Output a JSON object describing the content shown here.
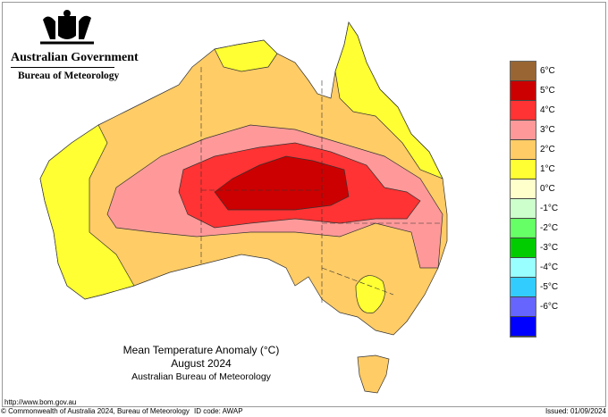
{
  "header": {
    "org": "Australian Government",
    "bureau": "Bureau of Meteorology"
  },
  "map_title": {
    "line1": "Mean Temperature Anomaly (°C)",
    "line2": "August 2024",
    "line3": "Australian Bureau of Meteorology"
  },
  "legend": {
    "colors": [
      "#996633",
      "#cc0000",
      "#ff3333",
      "#ff9999",
      "#ffcc66",
      "#ffff33",
      "#ffffcc",
      "#ccffcc",
      "#66ff66",
      "#00cc00",
      "#99ffff",
      "#33ccff",
      "#6666ff",
      "#0000ff"
    ],
    "labels": [
      "6°C",
      "5°C",
      "4°C",
      "3°C",
      "2°C",
      "1°C",
      "0°C",
      "-1°C",
      "-2°C",
      "-3°C",
      "-4°C",
      "-5°C",
      "-6°C"
    ]
  },
  "footer": {
    "url": "http://www.bom.gov.au",
    "copyright": "© Commonwealth of Australia 2024, Bureau of Meteorology",
    "id_code": "ID code: AWAP",
    "issued": "Issued: 01/09/2024"
  }
}
